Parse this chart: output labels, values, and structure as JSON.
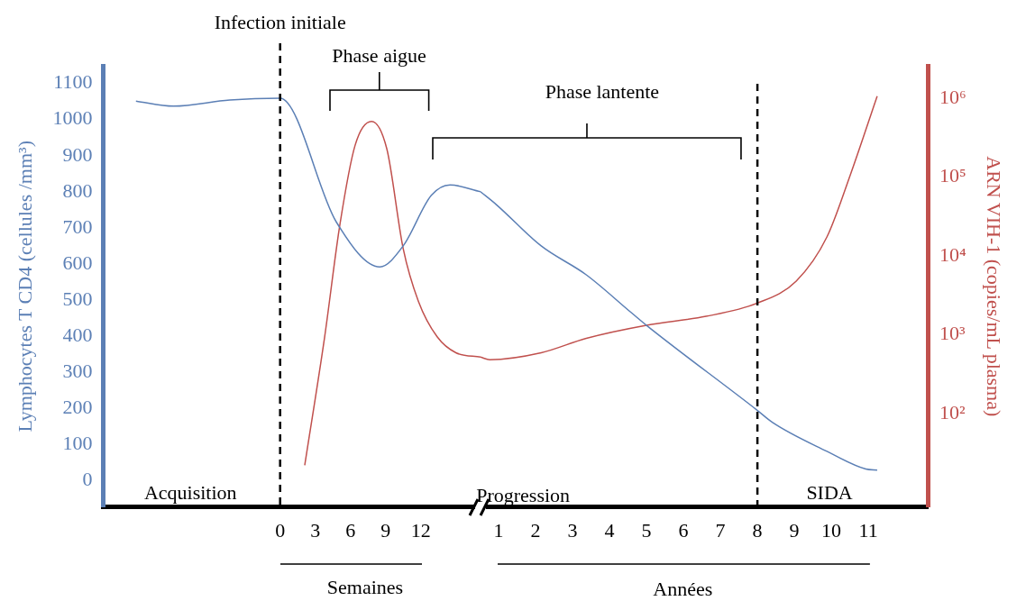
{
  "chart_data": [
    {
      "type": "line",
      "ylabel": "Lymphocytes T CD4 (cellules /mm³)",
      "xlim": [
        -15.1,
        17.1
      ],
      "xticks": [
        0,
        3,
        6,
        9,
        12
      ],
      "ylim": [
        -73,
        1149
      ],
      "yticks": [
        0,
        100,
        200,
        300,
        400,
        500,
        600,
        700,
        800,
        900,
        1000,
        1100
      ],
      "y2lim": [
        6.5,
        2600000
      ],
      "log": "y2",
      "series": [
        {
          "color": "#5b7fb5",
          "x": [
            -12.3,
            -9.1,
            -4.3,
            0,
            4.8,
            8.5,
            10.5,
            12.9,
            14.5,
            17.1
          ],
          "values": [
            1051,
            1037,
            1054,
            1059,
            716,
            592,
            650,
            790,
            819,
            800
          ]
        },
        {
          "color": "#c0504d",
          "axis": "y2",
          "x": [
            2.1,
            3.8,
            5.1,
            6.4,
            7.8,
            9.1,
            10.5,
            11.8,
            13.4,
            15.0,
            17.1
          ],
          "values": [
            22,
            940,
            25000,
            255000,
            512000,
            230000,
            12400,
            2650,
            940,
            590,
            520
          ]
        }
      ],
      "ref_lines": [
        {
          "axis": "x",
          "value": 0,
          "label": "Infection initiale",
          "line_style": "dashed",
          "color": "#000000"
        }
      ],
      "annotations": [
        "Phase aigue",
        "Acquisition",
        "Semaines"
      ],
      "grid": false,
      "legend": false,
      "marker": "none",
      "line_style": "solid"
    },
    {
      "type": "line",
      "y2label": "ARN VIH-1 (copies/mL plasma)",
      "xlim": [
        0.51,
        12.63
      ],
      "xticks": [
        1,
        2,
        3,
        4,
        5,
        6,
        7,
        8,
        9,
        10,
        11
      ],
      "ylim": [
        -73,
        1149
      ],
      "y2lim": [
        6.5,
        2600000
      ],
      "y2ticks": [
        {
          "value": 100,
          "label": "10²"
        },
        {
          "value": 1000,
          "label": "10³"
        },
        {
          "value": 10000,
          "label": "10⁴"
        },
        {
          "value": 100000,
          "label": "10⁵"
        },
        {
          "value": 1000000,
          "label": "10⁶"
        }
      ],
      "log": "y2",
      "series": [
        {
          "color": "#5b7fb5",
          "x": [
            0.51,
            0.93,
            2.15,
            3.37,
            4.59,
            5.0,
            7.98,
            8.41,
            9.88,
            10.93,
            11.24
          ],
          "values": [
            800,
            765,
            650,
            570,
            465,
            430,
            196,
            161,
            81,
            32,
            29
          ]
        },
        {
          "color": "#c0504d",
          "axis": "y2",
          "x": [
            0.51,
            0.76,
            2.15,
            3.37,
            5.0,
            6.61,
            7.98,
            9.05,
            9.88,
            10.51,
            11.24
          ],
          "values": [
            520,
            482,
            590,
            900,
            1320,
            1710,
            2500,
            4800,
            17400,
            106000,
            1070000
          ]
        }
      ],
      "ref_lines": [
        {
          "axis": "x",
          "value": 8,
          "label": null,
          "line_style": "dashed",
          "color": "#000000"
        }
      ],
      "annotations": [
        "Phase lantente",
        "Progression",
        "SIDA",
        "Années"
      ],
      "grid": false,
      "legend": false,
      "marker": "none",
      "line_style": "solid"
    }
  ]
}
